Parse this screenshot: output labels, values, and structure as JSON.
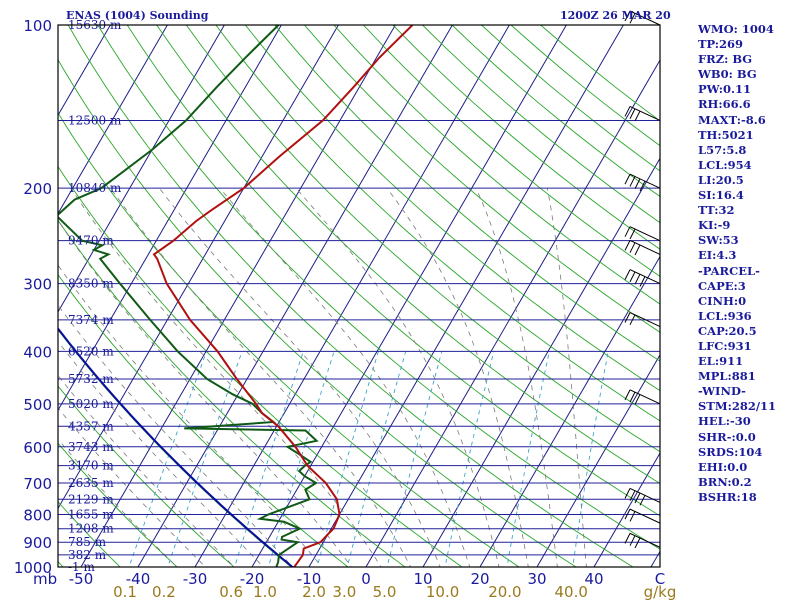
{
  "header": {
    "title": "ENAS (1004) Sounding",
    "time": "1200Z 26 MAR 20"
  },
  "stats": [
    "WMO: 1004",
    "TP:269",
    "FRZ: BG",
    "WB0: BG",
    "PW:0.11",
    "RH:66.6",
    "MAXT:-8.6",
    "TH:5021",
    "L57:5.8",
    "LCL:954",
    "LI:20.5",
    "SI:16.4",
    "TT:32",
    "KI:-9",
    "SW:53",
    "EI:4.3",
    "-PARCEL-",
    "CAPE:3",
    "CINH:0",
    "LCL:936",
    "CAP:20.5",
    "LFC:931",
    "EL:911",
    "MPL:881",
    "-WIND-",
    "STM:282/11",
    "HEL:-30",
    "SHR-:0.0",
    "SRDS:104",
    "EHI:0.0",
    "BRN:0.2",
    "BSHR:18"
  ],
  "colors": {
    "frame": "#000000",
    "isobar": "#20209a",
    "isotherm": "#1e1e88",
    "dry_adiabat": "#2aa62a",
    "moist_adiabat": "#7a7a7a",
    "mixing_ratio": "#3aa6c8",
    "temperature": "#b01010",
    "dewpoint": "#0f5a14",
    "parcel": "#0c0ca0",
    "label": "#1a1a9c",
    "mixing_label": "#9a7a1e"
  },
  "chart_data": {
    "type": "skew-t log-p",
    "pressure_axis": {
      "unit": "mb",
      "tick_labels": [
        "100",
        "200",
        "300",
        "400",
        "500",
        "600",
        "700",
        "800",
        "900",
        "1000"
      ],
      "range": [
        100,
        1000
      ],
      "scale": "log"
    },
    "temperature_axis": {
      "unit": "C",
      "tick_labels": [
        "-50",
        "-40",
        "-30",
        "-20",
        "-10",
        "0",
        "10",
        "20",
        "30",
        "40"
      ],
      "range": [
        -50,
        50
      ]
    },
    "mixing_ratio_axis": {
      "unit": "g/kg",
      "tick_labels": [
        "0.1",
        "0.2",
        "0.6",
        "1.0",
        "2.0",
        "3.0",
        "5.0",
        "10.0",
        "20.0",
        "40.0"
      ]
    },
    "corner_label": "C",
    "heights": [
      {
        "p": 100,
        "label": "15630 m"
      },
      {
        "p": 150,
        "label": "12500 m"
      },
      {
        "p": 200,
        "label": "10840 m"
      },
      {
        "p": 250,
        "label": "9470 m"
      },
      {
        "p": 300,
        "label": "8350 m"
      },
      {
        "p": 350,
        "label": "7374 m"
      },
      {
        "p": 400,
        "label": "6520 m"
      },
      {
        "p": 450,
        "label": "5732 m"
      },
      {
        "p": 500,
        "label": "5020 m"
      },
      {
        "p": 550,
        "label": "4357 m"
      },
      {
        "p": 600,
        "label": "3743 m"
      },
      {
        "p": 650,
        "label": "3170 m"
      },
      {
        "p": 700,
        "label": "2635 m"
      },
      {
        "p": 750,
        "label": "2129 m"
      },
      {
        "p": 800,
        "label": "1655 m"
      },
      {
        "p": 850,
        "label": "1208 m"
      },
      {
        "p": 900,
        "label": "785 m"
      },
      {
        "p": 950,
        "label": "382 m"
      },
      {
        "p": 1000,
        "label": "-1 m"
      }
    ],
    "temperature": [
      [
        1004,
        -12.6
      ],
      [
        950,
        -12.3
      ],
      [
        925,
        -12.8
      ],
      [
        900,
        -10.5
      ],
      [
        870,
        -10.0
      ],
      [
        850,
        -9.6
      ],
      [
        800,
        -10.0
      ],
      [
        750,
        -12.0
      ],
      [
        700,
        -15.6
      ],
      [
        650,
        -20.6
      ],
      [
        600,
        -24.6
      ],
      [
        550,
        -29.7
      ],
      [
        520,
        -33.9
      ],
      [
        500,
        -35.9
      ],
      [
        450,
        -41.8
      ],
      [
        400,
        -48.0
      ],
      [
        350,
        -56.0
      ],
      [
        300,
        -63.8
      ],
      [
        270,
        -68.0
      ],
      [
        265,
        -69.0
      ],
      [
        250,
        -67.0
      ],
      [
        230,
        -65.0
      ],
      [
        220,
        -63.5
      ],
      [
        200,
        -60.0
      ],
      [
        175,
        -57.0
      ],
      [
        150,
        -53.0
      ],
      [
        130,
        -51.0
      ],
      [
        115,
        -49.5
      ],
      [
        100,
        -47.0
      ]
    ],
    "dewpoint": [
      [
        1004,
        -15.7
      ],
      [
        980,
        -15.9
      ],
      [
        950,
        -16.5
      ],
      [
        900,
        -14.5
      ],
      [
        890,
        -17.6
      ],
      [
        880,
        -17.8
      ],
      [
        850,
        -15.5
      ],
      [
        825,
        -19.0
      ],
      [
        815,
        -23.5
      ],
      [
        800,
        -22.5
      ],
      [
        750,
        -16.8
      ],
      [
        720,
        -18.5
      ],
      [
        700,
        -17.3
      ],
      [
        680,
        -20.0
      ],
      [
        665,
        -21.5
      ],
      [
        650,
        -21.0
      ],
      [
        640,
        -20.4
      ],
      [
        615,
        -23.8
      ],
      [
        600,
        -26.0
      ],
      [
        585,
        -21.5
      ],
      [
        560,
        -24.5
      ],
      [
        555,
        -46.0
      ],
      [
        540,
        -31.0
      ],
      [
        520,
        -33.9
      ],
      [
        500,
        -36.5
      ],
      [
        480,
        -41.0
      ],
      [
        450,
        -47.0
      ],
      [
        400,
        -55.0
      ],
      [
        350,
        -63.0
      ],
      [
        300,
        -72.0
      ],
      [
        270,
        -78.0
      ],
      [
        265,
        -77.0
      ],
      [
        260,
        -80.0
      ],
      [
        255,
        -79.0
      ],
      [
        250,
        -83.0
      ],
      [
        225,
        -90.0
      ],
      [
        210,
        -88.5
      ],
      [
        200,
        -85.0
      ],
      [
        170,
        -80.0
      ],
      [
        150,
        -77.0
      ],
      [
        130,
        -75.0
      ],
      [
        115,
        -73.0
      ],
      [
        100,
        -70.5
      ]
    ],
    "wind_barbs_p": [
      100,
      150,
      200,
      250,
      265,
      300,
      360,
      500,
      760,
      830,
      920
    ],
    "grid": true
  }
}
